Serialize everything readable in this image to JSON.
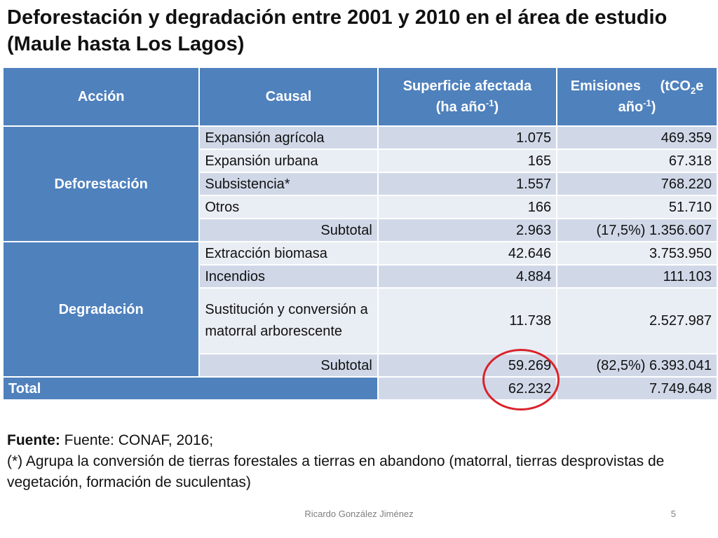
{
  "slide": {
    "title": "Deforestación y degradación entre 2001 y 2010 en el área de estudio (Maule hasta Los Lagos)",
    "footer_author": "Ricardo González Jiménez",
    "page_number": "5"
  },
  "table": {
    "headers": {
      "accion": "Acción",
      "causal": "Causal",
      "superficie_line1": "Superficie afectada",
      "superficie_line2_pre": "(ha año",
      "superficie_sup": "-1",
      "superficie_line2_post": ")",
      "emisiones_pre": "Emisiones     (tCO",
      "emisiones_sub": "2",
      "emisiones_mid": "e",
      "emisiones_line2_pre": "año",
      "emisiones_sup": "-1",
      "emisiones_line2_post": ")"
    },
    "deforestacion": {
      "label": "Deforestación",
      "rows": [
        {
          "causal": "Expansión agrícola",
          "superficie": "1.075",
          "emisiones": "469.359"
        },
        {
          "causal": "Expansión urbana",
          "superficie": "165",
          "emisiones": "67.318"
        },
        {
          "causal": "Subsistencia*",
          "superficie": "1.557",
          "emisiones": "768.220"
        },
        {
          "causal": "Otros",
          "superficie": "166",
          "emisiones": "51.710"
        }
      ],
      "subtotal": {
        "label": "Subtotal",
        "superficie": "2.963",
        "emisiones": "(17,5%) 1.356.607"
      }
    },
    "degradacion": {
      "label": "Degradación",
      "rows": [
        {
          "causal": "Extracción biomasa",
          "superficie": "42.646",
          "emisiones": "3.753.950"
        },
        {
          "causal": "Incendios",
          "superficie": "4.884",
          "emisiones": "111.103"
        },
        {
          "causal": "Sustitución y conversión a matorral arborescente",
          "superficie": "11.738",
          "emisiones": "2.527.987"
        }
      ],
      "subtotal": {
        "label": "Subtotal",
        "superficie": "59.269",
        "emisiones": "(82,5%) 6.393.041"
      }
    },
    "total": {
      "label": "Total",
      "superficie": "62.232",
      "emisiones": "7.749.648"
    }
  },
  "notes": {
    "fuente_label": "Fuente:",
    "fuente_text": " Fuente: CONAF, 2016;",
    "asterisk_note": "(*) Agrupa la conversión de tierras forestales a tierras en abandono (matorral, tierras desprovistas de vegetación, formación de suculentas)"
  },
  "colors": {
    "header_blue": "#4f81bd",
    "row_dark": "#d0d8e8",
    "row_light": "#e9edf4",
    "highlight_circle": "#d9232a"
  }
}
